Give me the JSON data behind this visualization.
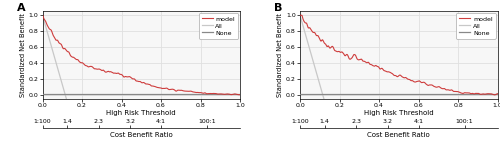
{
  "title_A": "A",
  "title_B": "B",
  "ylabel": "Standardized Net Benefit",
  "xlabel_top": "High Risk Threshold",
  "xlabel_bottom": "Cost Benefit Ratio",
  "xlim": [
    0.0,
    1.0
  ],
  "ylim": [
    -0.05,
    1.05
  ],
  "xticks_top": [
    0.0,
    0.2,
    0.4,
    0.6,
    0.8,
    1.0
  ],
  "xtick_labels_top": [
    "0.0",
    "0.2",
    "0.4",
    "0.6",
    "0.8",
    "1.0"
  ],
  "yticks": [
    0.0,
    0.2,
    0.4,
    0.6,
    0.8,
    1.0
  ],
  "ytick_labels": [
    "0.0",
    "0.2",
    "0.4",
    "0.6",
    "0.8",
    "1.0"
  ],
  "cbr_tick_positions": [
    0.0,
    0.125,
    0.286,
    0.444,
    0.6,
    0.833
  ],
  "cbr_tick_labels": [
    "1:100",
    "1.4",
    "2.3",
    "3.2",
    "4:1",
    "100:1"
  ],
  "legend_labels": [
    "model",
    "All",
    "None"
  ],
  "model_color": "#cc3333",
  "all_color": "#c8c8c8",
  "none_color": "#888888",
  "background_color": "#ffffff",
  "grid_color": "#e0e0e0",
  "panel_bg": "#f7f7f7"
}
